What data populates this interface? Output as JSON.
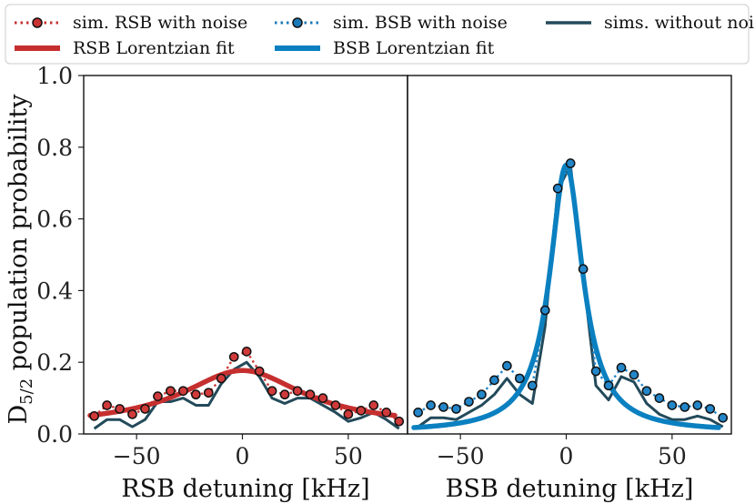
{
  "chart_data": [
    {
      "type": "line",
      "panel": "left",
      "xlabel": "RSB detuning [kHz]",
      "ylabel": "D5/2 population probability",
      "ylabel_main": "D",
      "ylabel_sub": "5/2",
      "ylabel_rest": " population probability",
      "xlim": [
        -75,
        78
      ],
      "ylim": [
        0,
        1
      ],
      "xticks": [
        -50,
        0,
        50
      ],
      "xtick_labels": [
        "−50",
        "0",
        "50"
      ],
      "yticks": [
        0.0,
        0.2,
        0.4,
        0.6,
        0.8,
        1.0
      ],
      "ytick_labels": [
        "0.0",
        "0.2",
        "0.4",
        "0.6",
        "0.8",
        "1.0"
      ],
      "series": [
        {
          "name": "sim. RSB with noise",
          "style": "dotted-marker",
          "x": [
            -70,
            -64,
            -58,
            -52,
            -46,
            -40,
            -34,
            -28,
            -22,
            -16,
            -10,
            -4,
            2,
            8,
            14,
            20,
            26,
            32,
            38,
            44,
            50,
            56,
            62,
            68,
            74
          ],
          "y": [
            0.05,
            0.08,
            0.07,
            0.055,
            0.07,
            0.105,
            0.12,
            0.12,
            0.11,
            0.115,
            0.155,
            0.215,
            0.23,
            0.175,
            0.12,
            0.11,
            0.12,
            0.11,
            0.1,
            0.08,
            0.055,
            0.065,
            0.08,
            0.06,
            0.035
          ]
        },
        {
          "name": "RSB Lorentzian fit",
          "style": "thick-line",
          "x0": 0,
          "gamma": 35,
          "amplitude": 0.155,
          "offset": 0.022
        },
        {
          "name": "sims. without noise",
          "style": "thin-line",
          "x": [
            -70,
            -64,
            -58,
            -52,
            -46,
            -40,
            -34,
            -28,
            -22,
            -16,
            -10,
            -4,
            2,
            8,
            14,
            20,
            26,
            32,
            38,
            44,
            50,
            56,
            62,
            68,
            74
          ],
          "y": [
            0.015,
            0.04,
            0.04,
            0.02,
            0.04,
            0.09,
            0.09,
            0.1,
            0.08,
            0.08,
            0.14,
            0.18,
            0.2,
            0.16,
            0.1,
            0.085,
            0.1,
            0.1,
            0.08,
            0.06,
            0.035,
            0.045,
            0.06,
            0.04,
            0.015
          ]
        }
      ]
    },
    {
      "type": "line",
      "panel": "right",
      "xlabel": "BSB detuning [kHz]",
      "xlim": [
        -75,
        78
      ],
      "ylim": [
        0,
        1
      ],
      "xticks": [
        -50,
        0,
        50
      ],
      "xtick_labels": [
        "−50",
        "0",
        "50"
      ],
      "series": [
        {
          "name": "sim. BSB with noise",
          "style": "dotted-marker",
          "x": [
            -70,
            -64,
            -58,
            -52,
            -46,
            -40,
            -34,
            -28,
            -22,
            -16,
            -10,
            -4,
            2,
            8,
            14,
            20,
            26,
            32,
            38,
            44,
            50,
            56,
            62,
            68,
            74
          ],
          "y": [
            0.06,
            0.08,
            0.075,
            0.07,
            0.09,
            0.11,
            0.15,
            0.19,
            0.155,
            0.135,
            0.345,
            0.685,
            0.755,
            0.46,
            0.175,
            0.135,
            0.185,
            0.165,
            0.12,
            0.1,
            0.08,
            0.075,
            0.08,
            0.07,
            0.045
          ]
        },
        {
          "name": "BSB Lorentzian fit",
          "style": "thick-line",
          "x0": 0,
          "gamma": 9.5,
          "amplitude": 0.745,
          "offset": 0.005
        },
        {
          "name": "sims. without noise",
          "style": "thin-line",
          "x": [
            -70,
            -64,
            -58,
            -52,
            -46,
            -40,
            -34,
            -28,
            -22,
            -16,
            -10,
            -4,
            2,
            8,
            14,
            20,
            26,
            32,
            38,
            44,
            50,
            56,
            62,
            68,
            74
          ],
          "y": [
            0.02,
            0.045,
            0.045,
            0.04,
            0.06,
            0.08,
            0.11,
            0.155,
            0.11,
            0.085,
            0.3,
            0.68,
            0.75,
            0.44,
            0.135,
            0.095,
            0.16,
            0.145,
            0.085,
            0.055,
            0.04,
            0.04,
            0.05,
            0.04,
            0.02
          ]
        }
      ]
    }
  ],
  "legend": {
    "items": [
      {
        "label": "sim. RSB with noise",
        "style": "dotted-marker",
        "color": "#c83232"
      },
      {
        "label": "sim. BSB with noise",
        "style": "dotted-marker",
        "color": "#1a7ab8"
      },
      {
        "label": "sims. without noise",
        "style": "thin-line",
        "color": "#234a5a"
      },
      {
        "label": "RSB Lorentzian fit",
        "style": "thick-line",
        "color": "#c62f2f"
      },
      {
        "label": "BSB Lorentzian fit",
        "style": "thick-line",
        "color": "#0a80c0"
      }
    ]
  },
  "colors": {
    "rsb_marker": "#d03a3a",
    "rsb_fit": "#c62f2f",
    "bsb_marker": "#2386c9",
    "bsb_fit": "#0a80c0",
    "no_noise": "#234a5a"
  }
}
